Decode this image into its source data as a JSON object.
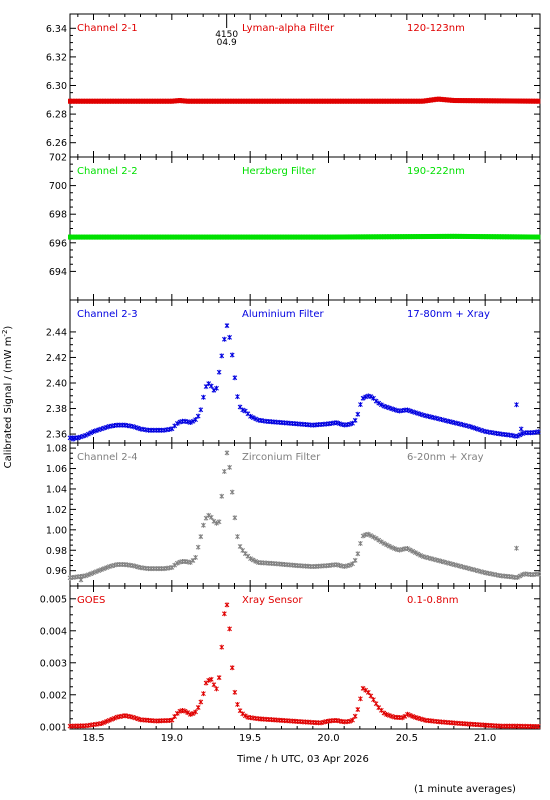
{
  "chart_data": {
    "type": "scatter",
    "xlabel": "Time / h UTC, 03 Apr 2026",
    "ylabel": "Calibrated Signal / (mW m",
    "ylabel_exp": "-2",
    "ylabel_tail": ")",
    "footnote": "(1 minute averages)",
    "xlim": [
      18.35,
      21.35
    ],
    "xticks": [
      18.5,
      19.0,
      19.5,
      20.0,
      20.5,
      21.0
    ],
    "xtick_labels": [
      "18.5",
      "19.0",
      "19.5",
      "20.0",
      "20.5",
      "21.0"
    ],
    "marker_annotation": {
      "x": 19.35,
      "lines": [
        "4150",
        "04.9"
      ]
    },
    "panels": [
      {
        "channel": "Channel 2-1",
        "filter": "Lyman-alpha Filter",
        "band": "120-123nm",
        "color": "#e00000",
        "marker": "dense",
        "ylim": [
          6.25,
          6.35
        ],
        "yticks": [
          6.26,
          6.28,
          6.3,
          6.32,
          6.34
        ],
        "ytick_labels": [
          "6.26",
          "6.28",
          "6.30",
          "6.32",
          "6.34"
        ],
        "series": [
          [
            18.35,
            6.289
          ],
          [
            19.0,
            6.289
          ],
          [
            19.05,
            6.2895
          ],
          [
            19.1,
            6.289
          ],
          [
            20.6,
            6.289
          ],
          [
            20.7,
            6.2905
          ],
          [
            20.8,
            6.2895
          ],
          [
            21.35,
            6.289
          ]
        ]
      },
      {
        "channel": "Channel 2-2",
        "filter": "Herzberg Filter",
        "band": "190-222nm",
        "color": "#00e000",
        "marker": "dense",
        "ylim": [
          692.0,
          702.0
        ],
        "yticks": [
          694,
          696,
          698,
          700,
          702
        ],
        "ytick_labels": [
          "694",
          "696",
          "698",
          "700",
          "702"
        ],
        "series": [
          [
            18.35,
            696.4
          ],
          [
            19.5,
            696.4
          ],
          [
            20.0,
            696.4
          ],
          [
            20.8,
            696.45
          ],
          [
            21.35,
            696.4
          ]
        ]
      },
      {
        "channel": "Channel 2-3",
        "filter": "Aluminium Filter",
        "band": "17-80nm + Xray",
        "color": "#0000e0",
        "marker": "star",
        "ylim": [
          2.353,
          2.465
        ],
        "yticks": [
          2.36,
          2.38,
          2.4,
          2.42,
          2.44
        ],
        "ytick_labels": [
          "2.36",
          "2.38",
          "2.40",
          "2.42",
          "2.44"
        ],
        "series": [
          [
            18.35,
            2.357
          ],
          [
            18.4,
            2.357
          ],
          [
            18.45,
            2.359
          ],
          [
            18.5,
            2.362
          ],
          [
            18.55,
            2.364
          ],
          [
            18.6,
            2.366
          ],
          [
            18.65,
            2.367
          ],
          [
            18.7,
            2.367
          ],
          [
            18.75,
            2.366
          ],
          [
            18.8,
            2.364
          ],
          [
            18.85,
            2.363
          ],
          [
            18.9,
            2.363
          ],
          [
            18.95,
            2.363
          ],
          [
            19.0,
            2.364
          ],
          [
            19.03,
            2.368
          ],
          [
            19.06,
            2.37
          ],
          [
            19.09,
            2.37
          ],
          [
            19.12,
            2.369
          ],
          [
            19.15,
            2.371
          ],
          [
            19.18,
            2.376
          ],
          [
            19.2,
            2.388
          ],
          [
            19.22,
            2.398
          ],
          [
            19.24,
            2.4
          ],
          [
            19.26,
            2.396
          ],
          [
            19.28,
            2.392
          ],
          [
            19.3,
            2.407
          ],
          [
            19.33,
            2.43
          ],
          [
            19.35,
            2.446
          ],
          [
            19.37,
            2.435
          ],
          [
            19.39,
            2.418
          ],
          [
            19.41,
            2.395
          ],
          [
            19.43,
            2.382
          ],
          [
            19.45,
            2.379
          ],
          [
            19.47,
            2.378
          ],
          [
            19.5,
            2.374
          ],
          [
            19.55,
            2.371
          ],
          [
            19.6,
            2.37
          ],
          [
            19.7,
            2.369
          ],
          [
            19.8,
            2.368
          ],
          [
            19.9,
            2.367
          ],
          [
            20.0,
            2.368
          ],
          [
            20.05,
            2.369
          ],
          [
            20.1,
            2.367
          ],
          [
            20.15,
            2.368
          ],
          [
            20.18,
            2.372
          ],
          [
            20.2,
            2.382
          ],
          [
            20.22,
            2.388
          ],
          [
            20.25,
            2.39
          ],
          [
            20.28,
            2.389
          ],
          [
            20.31,
            2.385
          ],
          [
            20.35,
            2.382
          ],
          [
            20.4,
            2.38
          ],
          [
            20.45,
            2.378
          ],
          [
            20.5,
            2.379
          ],
          [
            20.55,
            2.377
          ],
          [
            20.6,
            2.375
          ],
          [
            20.7,
            2.372
          ],
          [
            20.8,
            2.369
          ],
          [
            20.9,
            2.366
          ],
          [
            21.0,
            2.362
          ],
          [
            21.1,
            2.36
          ],
          [
            21.17,
            2.359
          ],
          [
            21.2,
            2.358
          ],
          [
            21.25,
            2.361
          ],
          [
            21.3,
            2.361
          ],
          [
            21.35,
            2.362
          ]
        ],
        "outliers": [
          [
            18.37,
            2.356
          ],
          [
            18.4,
            2.357
          ],
          [
            21.2,
            2.383
          ],
          [
            21.23,
            2.364
          ]
        ]
      },
      {
        "channel": "Channel 2-4",
        "filter": "Zirconium Filter",
        "band": "6-20nm + Xray",
        "color": "#808080",
        "marker": "star",
        "ylim": [
          0.945,
          1.085
        ],
        "yticks": [
          0.96,
          0.98,
          1.0,
          1.02,
          1.04,
          1.06,
          1.08
        ],
        "ytick_labels": [
          "0.96",
          "0.98",
          "1.00",
          "1.02",
          "1.04",
          "1.06",
          "1.08"
        ],
        "series": [
          [
            18.35,
            0.953
          ],
          [
            18.45,
            0.955
          ],
          [
            18.5,
            0.958
          ],
          [
            18.55,
            0.961
          ],
          [
            18.6,
            0.964
          ],
          [
            18.65,
            0.966
          ],
          [
            18.7,
            0.966
          ],
          [
            18.75,
            0.965
          ],
          [
            18.8,
            0.963
          ],
          [
            18.85,
            0.962
          ],
          [
            18.9,
            0.962
          ],
          [
            18.95,
            0.962
          ],
          [
            19.0,
            0.963
          ],
          [
            19.03,
            0.967
          ],
          [
            19.06,
            0.969
          ],
          [
            19.09,
            0.969
          ],
          [
            19.12,
            0.968
          ],
          [
            19.15,
            0.972
          ],
          [
            19.18,
            0.99
          ],
          [
            19.21,
            1.01
          ],
          [
            19.24,
            1.015
          ],
          [
            19.27,
            1.008
          ],
          [
            19.3,
            1.005
          ],
          [
            19.33,
            1.05
          ],
          [
            19.35,
            1.077
          ],
          [
            19.37,
            1.06
          ],
          [
            19.39,
            1.03
          ],
          [
            19.41,
            1.0
          ],
          [
            19.43,
            0.985
          ],
          [
            19.46,
            0.978
          ],
          [
            19.5,
            0.972
          ],
          [
            19.55,
            0.968
          ],
          [
            19.65,
            0.967
          ],
          [
            19.8,
            0.965
          ],
          [
            19.9,
            0.964
          ],
          [
            20.0,
            0.965
          ],
          [
            20.05,
            0.966
          ],
          [
            20.1,
            0.964
          ],
          [
            20.15,
            0.966
          ],
          [
            20.18,
            0.972
          ],
          [
            20.2,
            0.985
          ],
          [
            20.22,
            0.994
          ],
          [
            20.25,
            0.996
          ],
          [
            20.3,
            0.992
          ],
          [
            20.35,
            0.987
          ],
          [
            20.4,
            0.983
          ],
          [
            20.45,
            0.98
          ],
          [
            20.5,
            0.982
          ],
          [
            20.55,
            0.978
          ],
          [
            20.6,
            0.974
          ],
          [
            20.7,
            0.97
          ],
          [
            20.8,
            0.966
          ],
          [
            20.9,
            0.962
          ],
          [
            21.0,
            0.958
          ],
          [
            21.1,
            0.955
          ],
          [
            21.17,
            0.954
          ],
          [
            21.2,
            0.953
          ],
          [
            21.25,
            0.957
          ],
          [
            21.3,
            0.956
          ],
          [
            21.35,
            0.957
          ]
        ],
        "outliers": [
          [
            21.2,
            0.982
          ],
          [
            18.42,
            0.951
          ]
        ]
      },
      {
        "channel": "GOES",
        "filter": "Xray Sensor",
        "band": "0.1-0.8nm",
        "color": "#e00000",
        "marker": "star",
        "ylim": [
          0.00093,
          0.0054
        ],
        "yticks": [
          0.001,
          0.002,
          0.003,
          0.004,
          0.005
        ],
        "ytick_labels": [
          "0.001",
          "0.002",
          "0.003",
          "0.004",
          "0.005"
        ],
        "series": [
          [
            18.35,
            0.00102
          ],
          [
            18.45,
            0.00103
          ],
          [
            18.55,
            0.0011
          ],
          [
            18.65,
            0.0013
          ],
          [
            18.7,
            0.00135
          ],
          [
            18.75,
            0.0013
          ],
          [
            18.8,
            0.00122
          ],
          [
            18.9,
            0.00118
          ],
          [
            19.0,
            0.0012
          ],
          [
            19.03,
            0.0014
          ],
          [
            19.06,
            0.00152
          ],
          [
            19.09,
            0.00148
          ],
          [
            19.12,
            0.00138
          ],
          [
            19.15,
            0.00145
          ],
          [
            19.18,
            0.0017
          ],
          [
            19.2,
            0.002
          ],
          [
            19.22,
            0.0024
          ],
          [
            19.25,
            0.0025
          ],
          [
            19.27,
            0.0023
          ],
          [
            19.29,
            0.00215
          ],
          [
            19.31,
            0.0028
          ],
          [
            19.33,
            0.0044
          ],
          [
            19.35,
            0.0049
          ],
          [
            19.37,
            0.004
          ],
          [
            19.39,
            0.0025
          ],
          [
            19.41,
            0.0018
          ],
          [
            19.44,
            0.00145
          ],
          [
            19.48,
            0.0013
          ],
          [
            19.55,
            0.00125
          ],
          [
            19.7,
            0.0012
          ],
          [
            19.85,
            0.00115
          ],
          [
            19.95,
            0.00112
          ],
          [
            20.0,
            0.00118
          ],
          [
            20.05,
            0.0012
          ],
          [
            20.1,
            0.00115
          ],
          [
            20.15,
            0.00118
          ],
          [
            20.18,
            0.0014
          ],
          [
            20.2,
            0.0018
          ],
          [
            20.22,
            0.0022
          ],
          [
            20.25,
            0.0021
          ],
          [
            20.28,
            0.0019
          ],
          [
            20.32,
            0.0016
          ],
          [
            20.36,
            0.0014
          ],
          [
            20.42,
            0.0013
          ],
          [
            20.48,
            0.00128
          ],
          [
            20.5,
            0.0014
          ],
          [
            20.55,
            0.0013
          ],
          [
            20.62,
            0.0012
          ],
          [
            20.72,
            0.00115
          ],
          [
            20.85,
            0.0011
          ],
          [
            21.0,
            0.00105
          ],
          [
            21.1,
            0.00102
          ],
          [
            21.2,
            0.00102
          ],
          [
            21.3,
            0.00101
          ],
          [
            21.35,
            0.00101
          ]
        ],
        "outliers": []
      }
    ]
  }
}
